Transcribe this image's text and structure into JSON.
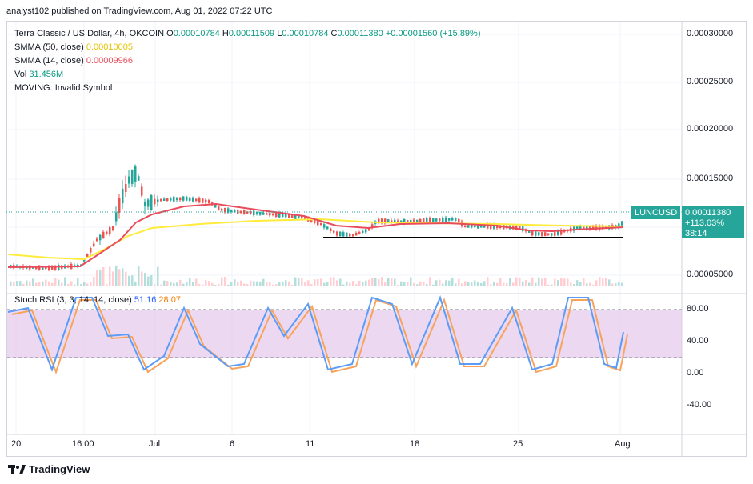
{
  "header": {
    "published": "analyst102 published on TradingView.com, Aug 01, 2022 07:22 UTC"
  },
  "legend": {
    "symbol": "Terra Classic / US Dollar, 4h, OKCOIN",
    "o_label": "O",
    "o_value": "0.00010784",
    "h_label": "H",
    "h_value": "0.00011509",
    "l_label": "L",
    "l_value": "0.00010784",
    "c_label": "C",
    "c_value": "0.00011380",
    "change": "+0.00001560 (+15.89%)",
    "smma50_label": "SMMA (50, close)",
    "smma50_value": "0.00010005",
    "smma14_label": "SMMA (14, close)",
    "smma14_value": "0.00009966",
    "vol_label": "Vol",
    "vol_value": "31.456M",
    "moving_label": "MOVING: Invalid Symbol"
  },
  "price_axis": {
    "ticks": [
      "0.00030000",
      "0.00025000",
      "0.00020000",
      "0.00015000",
      "0.00005000"
    ]
  },
  "current_price": {
    "symbol": "LUNCUSD",
    "price": "0.00011380",
    "change": "+113.03%",
    "countdown": "38:14"
  },
  "stoch": {
    "label": "Stoch RSI (3, 3, 14, 14, close)",
    "k_value": "51.16",
    "d_value": "28.07",
    "ticks": [
      "80.00",
      "40.00",
      "0.00",
      "-40.00"
    ]
  },
  "time_axis": {
    "ticks": [
      "20",
      "16:00",
      "Jul",
      "6",
      "11",
      "18",
      "25",
      "Aug"
    ]
  },
  "footer": {
    "brand": "TradingView"
  },
  "colors": {
    "up": "#26a69a",
    "down": "#ef5350",
    "smma50": "#ffeb3b",
    "smma14": "#e84c5a",
    "stoch_k": "#5b9cf6",
    "stoch_d": "#f7a35c",
    "stoch_band": "#e1bee7"
  }
}
